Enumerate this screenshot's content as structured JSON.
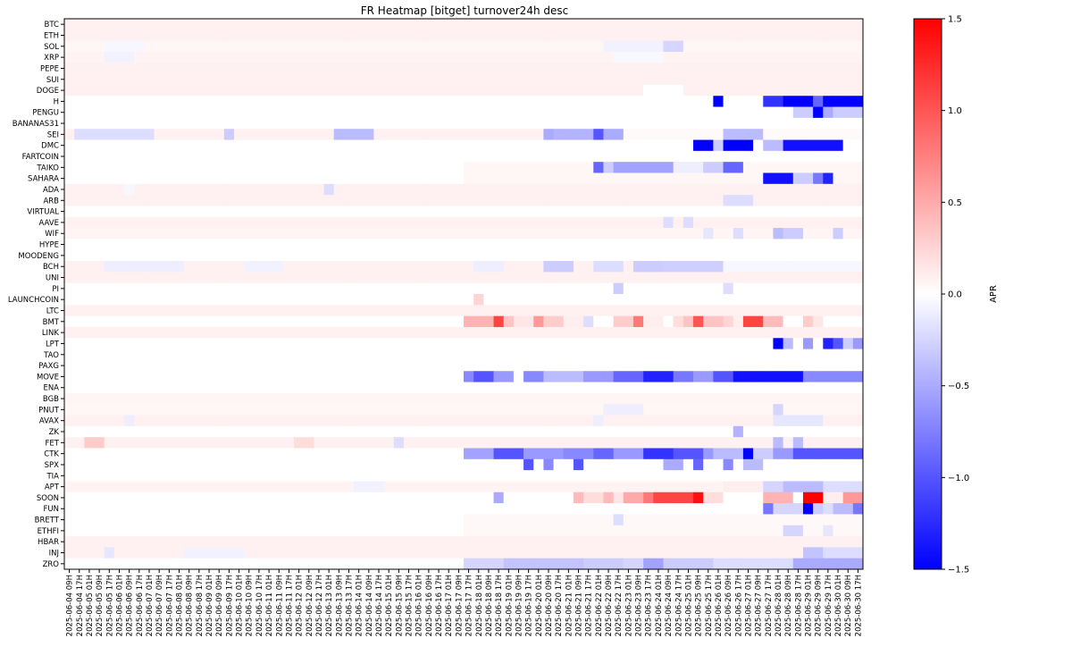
{
  "chart_data": {
    "type": "heatmap",
    "title": "FR Heatmap [bitget] turnover24h desc",
    "colorbar_label": "APR",
    "colormap": "bwr",
    "vmin": -1.5,
    "vmax": 1.5,
    "colorbar_ticks": [
      "1.5",
      "1.0",
      "0.5",
      "0.0",
      "−0.5",
      "−1.0",
      "−1.5"
    ],
    "colorbar_tick_values": [
      1.5,
      1.0,
      0.5,
      0.0,
      -0.5,
      -1.0,
      -1.5
    ],
    "rows": [
      "BTC",
      "ETH",
      "SOL",
      "XRP",
      "PEPE",
      "SUI",
      "DOGE",
      "H",
      "PENGU",
      "BANANAS31",
      "SEI",
      "DMC",
      "FARTCOIN",
      "TAIKO",
      "SAHARA",
      "ADA",
      "ARB",
      "VIRTUAL",
      "AAVE",
      "WIF",
      "HYPE",
      "MOODENG",
      "BCH",
      "UNI",
      "PI",
      "LAUNCHCOIN",
      "LTC",
      "BMT",
      "LINK",
      "LPT",
      "TAO",
      "PAXG",
      "MOVE",
      "ENA",
      "BGB",
      "PNUT",
      "AVAX",
      "ZK",
      "FET",
      "CTK",
      "SPX",
      "TIA",
      "APT",
      "SOON",
      "FUN",
      "BRETT",
      "ETHFI",
      "HBAR",
      "INJ",
      "ZRO"
    ],
    "x_start": "2025-06-04 09H",
    "x_step_hours": 8,
    "columns_count": 80,
    "x_ticks": [
      "2025-06-04 09H",
      "2025-06-04 17H",
      "2025-06-05 01H",
      "2025-06-05 09H",
      "2025-06-05 17H",
      "2025-06-06 01H",
      "2025-06-06 09H",
      "2025-06-06 17H",
      "2025-06-07 01H",
      "2025-06-07 09H",
      "2025-06-07 17H",
      "2025-06-08 01H",
      "2025-06-08 09H",
      "2025-06-08 17H",
      "2025-06-09 01H",
      "2025-06-09 09H",
      "2025-06-09 17H",
      "2025-06-10 01H",
      "2025-06-10 09H",
      "2025-06-10 17H",
      "2025-06-11 01H",
      "2025-06-11 09H",
      "2025-06-11 17H",
      "2025-06-12 01H",
      "2025-06-12 09H",
      "2025-06-12 17H",
      "2025-06-13 01H",
      "2025-06-13 09H",
      "2025-06-13 17H",
      "2025-06-14 01H",
      "2025-06-14 09H",
      "2025-06-14 17H",
      "2025-06-15 01H",
      "2025-06-15 09H",
      "2025-06-15 17H",
      "2025-06-16 01H",
      "2025-06-16 09H",
      "2025-06-16 17H",
      "2025-06-17 01H",
      "2025-06-17 09H",
      "2025-06-17 17H",
      "2025-06-18 01H",
      "2025-06-18 09H",
      "2025-06-18 17H",
      "2025-06-19 01H",
      "2025-06-19 09H",
      "2025-06-19 17H",
      "2025-06-20 01H",
      "2025-06-20 09H",
      "2025-06-20 17H",
      "2025-06-21 01H",
      "2025-06-21 09H",
      "2025-06-21 17H",
      "2025-06-22 01H",
      "2025-06-22 09H",
      "2025-06-22 17H",
      "2025-06-23 01H",
      "2025-06-23 09H",
      "2025-06-23 17H",
      "2025-06-24 01H",
      "2025-06-24 09H",
      "2025-06-24 17H",
      "2025-06-25 01H",
      "2025-06-25 09H",
      "2025-06-25 17H",
      "2025-06-26 01H",
      "2025-06-26 09H",
      "2025-06-26 17H",
      "2025-06-27 01H",
      "2025-06-27 09H",
      "2025-06-27 17H",
      "2025-06-28 01H",
      "2025-06-28 09H",
      "2025-06-28 17H",
      "2025-06-29 01H",
      "2025-06-29 09H",
      "2025-06-29 17H",
      "2025-06-30 01H",
      "2025-06-30 09H",
      "2025-06-30 17H"
    ],
    "row_data": {
      "BTC": {
        "base": 0.08
      },
      "ETH": {
        "base": 0.08
      },
      "SOL": {
        "base": 0.05,
        "segments": [
          [
            4,
            8,
            -0.05
          ],
          [
            54,
            60,
            -0.08
          ],
          [
            60,
            62,
            -0.25
          ]
        ]
      },
      "XRP": {
        "base": 0.07,
        "segments": [
          [
            4,
            7,
            -0.08
          ],
          [
            55,
            60,
            -0.04
          ]
        ]
      },
      "PEPE": {
        "base": 0.08
      },
      "SUI": {
        "base": 0.08
      },
      "DOGE": {
        "base": 0.08,
        "segments": [
          [
            58,
            62,
            0.0
          ]
        ]
      },
      "H": {
        "base": 0.0,
        "start": 40,
        "segments": [
          [
            65,
            66,
            -1.5
          ],
          [
            70,
            72,
            -1.2
          ],
          [
            72,
            75,
            -1.5
          ],
          [
            75,
            76,
            -0.9
          ],
          [
            76,
            80,
            -1.5
          ]
        ]
      },
      "PENGU": {
        "base": 0.0,
        "start": 40,
        "segments": [
          [
            73,
            75,
            -0.3
          ],
          [
            75,
            76,
            -1.5
          ],
          [
            76,
            77,
            -0.5
          ],
          [
            77,
            80,
            -0.3
          ]
        ]
      },
      "BANANAS31": {
        "base": 0.0
      },
      "SEI": {
        "base": 0.08,
        "segments": [
          [
            1,
            9,
            -0.2
          ],
          [
            16,
            17,
            -0.3
          ],
          [
            27,
            31,
            -0.4
          ],
          [
            48,
            49,
            -0.5
          ],
          [
            49,
            53,
            -0.45
          ],
          [
            53,
            54,
            -1.0
          ],
          [
            54,
            56,
            -0.5
          ],
          [
            56,
            80,
            0.03
          ],
          [
            66,
            70,
            -0.4
          ]
        ]
      },
      "DMC": {
        "base": 0.0,
        "start": 40,
        "segments": [
          [
            63,
            65,
            -1.5
          ],
          [
            65,
            66,
            -0.3
          ],
          [
            66,
            69,
            -1.5
          ],
          [
            70,
            72,
            -0.4
          ],
          [
            72,
            78,
            -1.4
          ]
        ]
      },
      "FARTCOIN": {
        "base": 0.0
      },
      "TAIKO": {
        "base": 0.05,
        "start": 40,
        "segments": [
          [
            53,
            54,
            -0.9
          ],
          [
            54,
            55,
            -0.3
          ],
          [
            55,
            61,
            -0.55
          ],
          [
            61,
            64,
            -0.1
          ],
          [
            64,
            66,
            -0.3
          ],
          [
            66,
            68,
            -0.9
          ]
        ]
      },
      "SAHARA": {
        "base": 0.05,
        "start": 40,
        "segments": [
          [
            70,
            73,
            -1.4
          ],
          [
            73,
            75,
            -0.3
          ],
          [
            75,
            76,
            -0.8
          ],
          [
            76,
            77,
            -1.3
          ]
        ]
      },
      "ADA": {
        "base": 0.08,
        "segments": [
          [
            6,
            7,
            -0.05
          ],
          [
            26,
            27,
            -0.2
          ]
        ]
      },
      "ARB": {
        "base": 0.08,
        "segments": [
          [
            66,
            69,
            -0.2
          ]
        ]
      },
      "VIRTUAL": {
        "base": 0.0
      },
      "AAVE": {
        "base": 0.08,
        "segments": [
          [
            60,
            61,
            -0.2
          ],
          [
            62,
            63,
            -0.2
          ]
        ]
      },
      "WIF": {
        "base": 0.06,
        "segments": [
          [
            64,
            65,
            -0.15
          ],
          [
            67,
            68,
            -0.2
          ],
          [
            71,
            72,
            -0.4
          ],
          [
            72,
            74,
            -0.3
          ],
          [
            77,
            78,
            -0.3
          ]
        ]
      },
      "HYPE": {
        "base": 0.0
      },
      "MOODENG": {
        "base": 0.0
      },
      "BCH": {
        "base": 0.08,
        "segments": [
          [
            4,
            12,
            -0.1
          ],
          [
            18,
            22,
            -0.08
          ],
          [
            41,
            44,
            -0.1
          ],
          [
            48,
            51,
            -0.3
          ],
          [
            53,
            56,
            -0.2
          ],
          [
            57,
            60,
            -0.3
          ],
          [
            60,
            66,
            -0.28
          ],
          [
            66,
            80,
            -0.05
          ]
        ]
      },
      "UNI": {
        "base": 0.08
      },
      "PI": {
        "base": 0.0,
        "start": 40,
        "segments": [
          [
            55,
            56,
            -0.3
          ],
          [
            66,
            67,
            -0.2
          ]
        ]
      },
      "LAUNCHCOIN": {
        "base": 0.0,
        "start": 40,
        "segments": [
          [
            41,
            42,
            0.25
          ]
        ]
      },
      "LTC": {
        "base": 0.08
      },
      "BMT": {
        "base": 0.0,
        "start": 40,
        "segments": [
          [
            40,
            43,
            0.45
          ],
          [
            43,
            44,
            1.1
          ],
          [
            44,
            45,
            0.35
          ],
          [
            45,
            47,
            0.15
          ],
          [
            47,
            48,
            0.6
          ],
          [
            48,
            50,
            0.3
          ],
          [
            50,
            52,
            0.1
          ],
          [
            52,
            53,
            -0.2
          ],
          [
            55,
            57,
            0.3
          ],
          [
            57,
            58,
            0.8
          ],
          [
            58,
            60,
            0.1
          ],
          [
            61,
            62,
            0.2
          ],
          [
            62,
            63,
            0.35
          ],
          [
            63,
            64,
            1.0
          ],
          [
            64,
            66,
            0.35
          ],
          [
            66,
            67,
            0.25
          ],
          [
            67,
            68,
            0.1
          ],
          [
            68,
            70,
            1.1
          ],
          [
            70,
            72,
            0.4
          ],
          [
            74,
            75,
            0.3
          ],
          [
            75,
            76,
            0.15
          ]
        ]
      },
      "LINK": {
        "base": 0.08
      },
      "LPT": {
        "base": 0.0,
        "start": 40,
        "segments": [
          [
            71,
            72,
            -1.5
          ],
          [
            72,
            73,
            -0.4
          ],
          [
            74,
            75,
            -0.6
          ],
          [
            76,
            77,
            -1.3
          ],
          [
            77,
            78,
            -1.0
          ],
          [
            78,
            79,
            -0.3
          ],
          [
            79,
            80,
            -0.6
          ]
        ]
      },
      "TAO": {
        "base": 0.0
      },
      "PAXG": {
        "base": 0.0
      },
      "MOVE": {
        "base": 0.0,
        "start": 40,
        "segments": [
          [
            40,
            41,
            -0.7
          ],
          [
            41,
            43,
            -1.0
          ],
          [
            43,
            45,
            -0.6
          ],
          [
            46,
            48,
            -0.7
          ],
          [
            48,
            52,
            -0.4
          ],
          [
            52,
            55,
            -0.6
          ],
          [
            55,
            58,
            -0.9
          ],
          [
            58,
            61,
            -1.3
          ],
          [
            61,
            63,
            -0.8
          ],
          [
            63,
            65,
            -0.6
          ],
          [
            65,
            67,
            -1.0
          ],
          [
            67,
            74,
            -1.4
          ],
          [
            74,
            80,
            -0.7
          ]
        ]
      },
      "ENA": {
        "base": 0.0
      },
      "BGB": {
        "base": 0.06
      },
      "PNUT": {
        "base": 0.05,
        "segments": [
          [
            54,
            58,
            -0.1
          ],
          [
            71,
            72,
            -0.25
          ]
        ]
      },
      "AVAX": {
        "base": 0.08,
        "segments": [
          [
            6,
            7,
            -0.1
          ],
          [
            53,
            54,
            -0.1
          ],
          [
            71,
            76,
            -0.15
          ]
        ]
      },
      "ZK": {
        "base": 0.0,
        "start": 40,
        "segments": [
          [
            67,
            68,
            -0.45
          ]
        ]
      },
      "FET": {
        "base": 0.08,
        "segments": [
          [
            2,
            4,
            0.3
          ],
          [
            23,
            25,
            0.2
          ],
          [
            33,
            34,
            -0.2
          ],
          [
            71,
            72,
            -0.4
          ],
          [
            73,
            74,
            -0.4
          ]
        ]
      },
      "CTK": {
        "base": 0.0,
        "start": 40,
        "segments": [
          [
            40,
            43,
            -0.55
          ],
          [
            43,
            46,
            -1.0
          ],
          [
            46,
            50,
            -0.6
          ],
          [
            50,
            53,
            -0.7
          ],
          [
            53,
            55,
            -0.9
          ],
          [
            55,
            58,
            -0.6
          ],
          [
            58,
            61,
            -1.2
          ],
          [
            61,
            64,
            -1.0
          ],
          [
            64,
            65,
            -0.6
          ],
          [
            65,
            68,
            -0.4
          ],
          [
            68,
            69,
            -1.5
          ],
          [
            69,
            71,
            -0.3
          ],
          [
            71,
            73,
            -0.6
          ],
          [
            73,
            80,
            -1.0
          ]
        ]
      },
      "SPX": {
        "base": 0.0,
        "start": 40,
        "segments": [
          [
            46,
            47,
            -1.0
          ],
          [
            48,
            49,
            -0.7
          ],
          [
            51,
            52,
            -1.0
          ],
          [
            60,
            62,
            -0.5
          ],
          [
            63,
            64,
            -0.9
          ],
          [
            66,
            67,
            -0.7
          ],
          [
            68,
            70,
            -0.4
          ]
        ]
      },
      "TIA": {
        "base": 0.0
      },
      "APT": {
        "base": 0.07,
        "segments": [
          [
            29,
            32,
            -0.08
          ],
          [
            66,
            70,
            0.1
          ],
          [
            70,
            72,
            -0.25
          ],
          [
            72,
            76,
            -0.4
          ],
          [
            76,
            80,
            -0.2
          ]
        ]
      },
      "SOON": {
        "base": 0.0,
        "start": 40,
        "segments": [
          [
            43,
            44,
            -0.5
          ],
          [
            51,
            52,
            0.4
          ],
          [
            52,
            54,
            0.2
          ],
          [
            54,
            55,
            0.4
          ],
          [
            55,
            56,
            0.15
          ],
          [
            56,
            58,
            0.5
          ],
          [
            58,
            59,
            0.8
          ],
          [
            59,
            63,
            1.1
          ],
          [
            63,
            64,
            1.4
          ],
          [
            64,
            66,
            0.2
          ],
          [
            70,
            73,
            0.45
          ],
          [
            74,
            76,
            1.5
          ],
          [
            76,
            78,
            0.1
          ],
          [
            78,
            80,
            0.6
          ]
        ]
      },
      "FUN": {
        "base": 0.0,
        "start": 40,
        "segments": [
          [
            70,
            71,
            -0.8
          ],
          [
            71,
            74,
            -0.25
          ],
          [
            74,
            75,
            -1.5
          ],
          [
            75,
            76,
            -0.3
          ],
          [
            76,
            77,
            -0.2
          ],
          [
            77,
            79,
            -0.4
          ],
          [
            79,
            80,
            -0.8
          ]
        ]
      },
      "BRETT": {
        "base": 0.04,
        "start": 40,
        "segments": [
          [
            55,
            56,
            -0.2
          ]
        ]
      },
      "ETHFI": {
        "base": 0.04,
        "start": 40,
        "segments": [
          [
            72,
            74,
            -0.25
          ],
          [
            76,
            77,
            -0.15
          ]
        ]
      },
      "HBAR": {
        "base": 0.08
      },
      "INJ": {
        "base": 0.08,
        "segments": [
          [
            4,
            5,
            -0.15
          ],
          [
            12,
            18,
            -0.08
          ],
          [
            74,
            76,
            -0.35
          ],
          [
            76,
            80,
            -0.2
          ]
        ]
      },
      "ZRO": {
        "base": 0.0,
        "start": 40,
        "segments": [
          [
            40,
            44,
            -0.25
          ],
          [
            44,
            52,
            -0.35
          ],
          [
            52,
            56,
            -0.3
          ],
          [
            56,
            58,
            -0.25
          ],
          [
            58,
            60,
            -0.55
          ],
          [
            60,
            65,
            -0.3
          ],
          [
            65,
            73,
            -0.2
          ],
          [
            73,
            80,
            -0.5
          ]
        ]
      }
    }
  }
}
